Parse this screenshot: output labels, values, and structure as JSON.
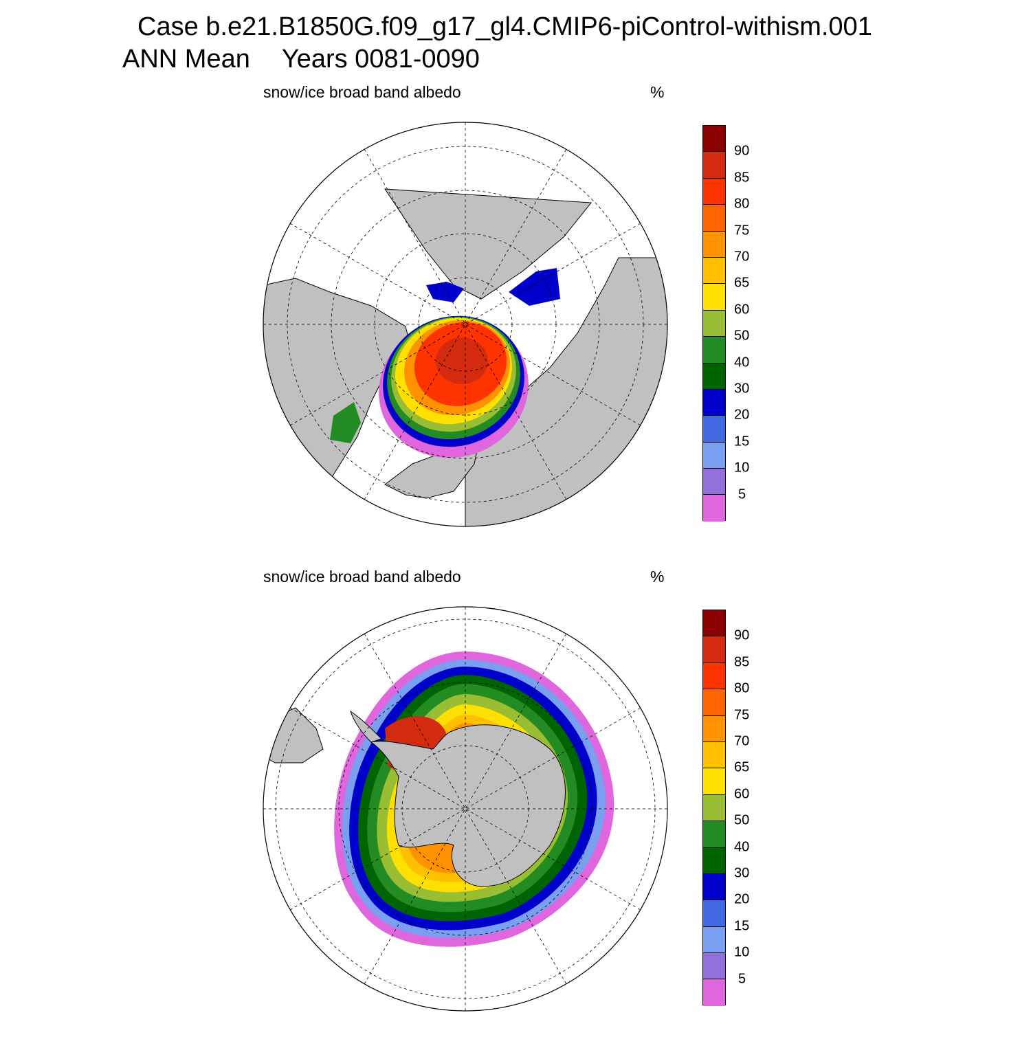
{
  "header": {
    "case_line": "Case b.e21.B1850G.f09_g17_gl4.CMIP6-piControl-withism.001",
    "mean_label": "ANN Mean",
    "years_label": "Years 0081-0090"
  },
  "panels": [
    {
      "id": "north",
      "hemisphere": "Northern",
      "title": "snow/ice broad band albedo",
      "units": "%"
    },
    {
      "id": "south",
      "hemisphere": "Southern",
      "title": "snow/ice broad band albedo",
      "units": "%"
    }
  ],
  "colorbar": {
    "labels": [
      "90",
      "85",
      "80",
      "75",
      "70",
      "65",
      "60",
      "50",
      "40",
      "30",
      "20",
      "15",
      "10",
      "5"
    ],
    "colors": [
      "#8b0000",
      "#d42a10",
      "#ff3300",
      "#ff6600",
      "#ff9200",
      "#ffc000",
      "#ffe000",
      "#99bd33",
      "#228b22",
      "#006400",
      "#0000cd",
      "#4169e1",
      "#7b9ff0",
      "#9370db",
      "#e066dd"
    ]
  },
  "map_style": {
    "land": "#c0c0c0",
    "ocean": "#ffffff",
    "grid": "#000000"
  }
}
